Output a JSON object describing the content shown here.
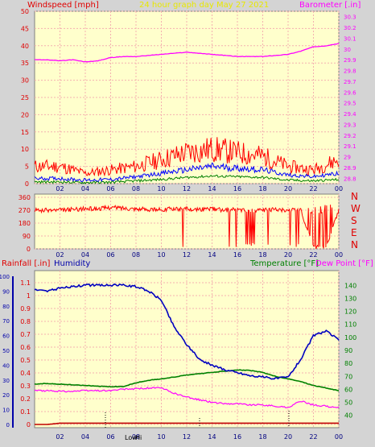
{
  "header": {
    "left_label": "Windspeed [mph]",
    "center_label": "24 hour graph day   May 27 2021",
    "right_label": "Barometer [.in]"
  },
  "wind_dir_labels": [
    "N",
    "W",
    "S",
    "E",
    "N"
  ],
  "bottom_header": {
    "rainfall": "Rainfall [.in]",
    "humidity": "Humidity",
    "temperature": "Temperature [°F]",
    "dewpoint": "Dew Point [°F]"
  },
  "annotations": {
    "low_label": "Low",
    "high_label": "Hi"
  },
  "colors": {
    "panel_bg": "#ffffcc",
    "grid": "#f4b0b0",
    "wind_speed": "#ff0000",
    "wind_avg": "#0000ff",
    "wind_low": "#008000",
    "barometer": "#ff00ff",
    "direction": "#ff0000",
    "humidity": "#0000c0",
    "temperature": "#008000",
    "dewpoint": "#ff00ff",
    "rainfall": "#c00000",
    "left_axis": "#0000aa",
    "label_red": "#e00000",
    "label_yellow": "#e8e800"
  },
  "chart_data": [
    {
      "type": "line",
      "x_ticks": [
        "02",
        "04",
        "06",
        "08",
        "10",
        "12",
        "14",
        "16",
        "18",
        "20",
        "22",
        "00"
      ],
      "y_left": {
        "label": "Windspeed [mph]",
        "ticks": [
          "0",
          "5",
          "10",
          "15",
          "20",
          "25",
          "30",
          "35",
          "40",
          "45",
          "50"
        ],
        "range": [
          0,
          50
        ]
      },
      "y_right": {
        "label": "Barometer [.in]",
        "ticks": [
          "28.8",
          "28.9",
          "29",
          "29.1",
          "29.2",
          "29.3",
          "29.4",
          "29.5",
          "29.6",
          "29.7",
          "29.8",
          "29.9",
          "30",
          "30.1",
          "30.2",
          "30.3"
        ],
        "range": [
          28.75,
          30.35
        ]
      },
      "series": [
        {
          "name": "Barometer",
          "axis": "right",
          "hours": [
            0,
            1,
            2,
            3,
            4,
            5,
            6,
            7,
            8,
            9,
            10,
            11,
            12,
            13,
            14,
            15,
            16,
            17,
            18,
            19,
            20,
            21,
            22,
            23,
            24
          ],
          "values": [
            29.9,
            29.9,
            29.89,
            29.9,
            29.88,
            29.89,
            29.92,
            29.93,
            29.93,
            29.94,
            29.95,
            29.96,
            29.97,
            29.96,
            29.95,
            29.94,
            29.93,
            29.93,
            29.93,
            29.94,
            29.95,
            29.98,
            30.02,
            30.03,
            30.05
          ]
        },
        {
          "name": "Gust",
          "axis": "left",
          "hours": [
            0,
            2,
            4,
            6,
            8,
            10,
            12,
            14,
            16,
            18,
            20,
            22,
            24
          ],
          "values": [
            5,
            5,
            3,
            4,
            5,
            7,
            9,
            10,
            9,
            8,
            5,
            4,
            7
          ]
        },
        {
          "name": "Average",
          "axis": "left",
          "hours": [
            0,
            2,
            4,
            6,
            8,
            10,
            12,
            14,
            16,
            18,
            20,
            22,
            24
          ],
          "values": [
            1.5,
            1.5,
            1,
            1.2,
            2,
            3,
            4,
            5,
            4.5,
            4,
            2.5,
            2,
            3
          ]
        },
        {
          "name": "Low",
          "axis": "left",
          "hours": [
            0,
            2,
            4,
            6,
            8,
            10,
            12,
            14,
            16,
            18,
            20,
            22,
            24
          ],
          "values": [
            0.5,
            0.5,
            0.3,
            0.4,
            0.8,
            1.2,
            1.8,
            2.2,
            2,
            1.8,
            1,
            0.8,
            1.2
          ]
        }
      ]
    },
    {
      "type": "line",
      "x_ticks": [
        "02",
        "04",
        "06",
        "08",
        "10",
        "12",
        "14",
        "16",
        "18",
        "20",
        "22",
        "00"
      ],
      "y_left": {
        "ticks": [
          "0",
          "90",
          "180",
          "270",
          "360"
        ],
        "range": [
          0,
          360
        ]
      },
      "series": [
        {
          "name": "Wind direction",
          "hours": [
            0,
            1,
            2,
            3,
            4,
            5,
            6,
            7,
            8,
            9,
            10,
            11,
            12,
            13,
            14,
            15,
            16,
            17,
            18,
            19,
            20,
            21,
            22,
            23,
            24
          ],
          "values": [
            270,
            270,
            270,
            275,
            280,
            280,
            290,
            285,
            280,
            275,
            275,
            280,
            280,
            275,
            280,
            270,
            275,
            270,
            270,
            275,
            270,
            270,
            10,
            10,
            270
          ]
        }
      ]
    },
    {
      "type": "line",
      "x_ticks": [
        "02",
        "04",
        "06",
        "08",
        "10",
        "12",
        "14",
        "16",
        "18",
        "20",
        "22",
        "00"
      ],
      "y_outer": {
        "ticks": [
          "0",
          "10",
          "20",
          "30",
          "40",
          "50",
          "60",
          "70",
          "80",
          "90",
          "100"
        ],
        "range": [
          0,
          100
        ]
      },
      "y_left": {
        "label": "Rainfall [.in]",
        "ticks": [
          "0",
          "0.1",
          "0.2",
          "0.3",
          "0.4",
          "0.5",
          "0.6",
          "0.7",
          "0.8",
          "0.9",
          "1",
          "1.1"
        ],
        "range": [
          0,
          1.15
        ]
      },
      "y_right": {
        "label": "Temperature [°F]",
        "ticks": [
          "40",
          "50",
          "60",
          "70",
          "80",
          "90",
          "100",
          "110",
          "120",
          "130",
          "140"
        ],
        "range": [
          33,
          147
        ]
      },
      "series": [
        {
          "name": "Humidity",
          "hours": [
            0,
            1,
            2,
            3,
            4,
            5,
            6,
            7,
            8,
            9,
            10,
            11,
            12,
            13,
            14,
            15,
            16,
            17,
            18,
            19,
            20,
            21,
            22,
            23,
            24
          ],
          "values": [
            91,
            90,
            92,
            93,
            94,
            94,
            94,
            94,
            93,
            90,
            84,
            66,
            54,
            44,
            40,
            37,
            35,
            33,
            32,
            31,
            32,
            44,
            60,
            63,
            57
          ]
        },
        {
          "name": "Temperature",
          "hours": [
            0,
            1,
            2,
            3,
            4,
            5,
            6,
            7,
            8,
            9,
            10,
            11,
            12,
            13,
            14,
            15,
            16,
            17,
            18,
            19,
            20,
            21,
            22,
            23,
            24
          ],
          "values": [
            64,
            64.5,
            64,
            63.5,
            63,
            62.5,
            62,
            62.2,
            65,
            67,
            68,
            69.5,
            71,
            72,
            73,
            74,
            75,
            74.5,
            73,
            70,
            68,
            66,
            63,
            61,
            59
          ]
        },
        {
          "name": "Dew Point",
          "hours": [
            0,
            1,
            2,
            3,
            4,
            5,
            6,
            7,
            8,
            9,
            10,
            11,
            12,
            13,
            14,
            15,
            16,
            17,
            18,
            19,
            20,
            21,
            22,
            23,
            24
          ],
          "values": [
            59,
            59,
            58.5,
            58.5,
            59,
            59,
            59,
            60,
            60.5,
            61,
            61,
            57,
            54,
            52,
            50,
            49,
            49,
            48,
            48,
            47,
            46,
            51,
            48,
            47,
            46
          ]
        },
        {
          "name": "Rainfall",
          "hours": [
            0,
            1,
            2,
            3,
            4,
            5,
            6,
            7,
            8,
            9,
            10,
            11,
            12,
            13,
            14,
            15,
            16,
            17,
            18,
            19,
            20,
            21,
            22,
            23,
            24
          ],
          "values": [
            0,
            0,
            0.01,
            0.01,
            0.01,
            0.01,
            0.01,
            0.01,
            0.01,
            0.01,
            0.01,
            0.01,
            0.01,
            0.01,
            0.01,
            0.01,
            0.01,
            0.01,
            0.01,
            0.01,
            0.01,
            0.01,
            0.01,
            0.01,
            0.01
          ]
        }
      ]
    }
  ]
}
